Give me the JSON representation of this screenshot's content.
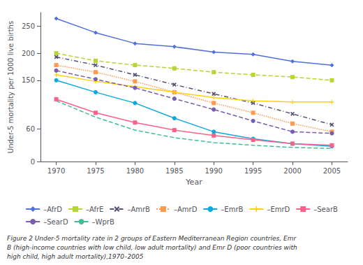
{
  "chart_data": {
    "type": "line",
    "x_label": "Year",
    "y_label": "Under-5 mortality per 1000 live births",
    "caption": "Figure 2 Under-5 mortality rate in 2 groups of Eastern Mediterranean Region countries, Emr\nB (high-income countries with low child, low adult mortality) and Emr D (poor countries with\nhigh child, high adult mortality),1970–2005",
    "x": [
      1970,
      1975,
      1980,
      1985,
      1990,
      1995,
      2000,
      2005
    ],
    "xlim": [
      1968,
      2007
    ],
    "xticks": [
      1970,
      1975,
      1980,
      1985,
      1990,
      1995,
      2000,
      2005
    ],
    "ylim": [
      0,
      275
    ],
    "yticks": [
      0,
      60,
      150,
      200,
      250
    ],
    "grid": false,
    "legend": "bottom",
    "series": [
      {
        "name": "–AfrD",
        "values": [
          264,
          238,
          218,
          212,
          202,
          198,
          185,
          178
        ],
        "marker": "diamond",
        "line_style": "solid"
      },
      {
        "name": "–AfrE",
        "values": [
          200,
          186,
          178,
          172,
          165,
          160,
          156,
          150
        ],
        "marker": "square",
        "line_style": "dashed"
      },
      {
        "name": "–AmrB",
        "values": [
          193,
          178,
          160,
          142,
          125,
          108,
          88,
          68
        ],
        "marker": "x",
        "line_style": "dashdot"
      },
      {
        "name": "–AmrD",
        "values": [
          178,
          165,
          148,
          128,
          108,
          90,
          70,
          55
        ],
        "marker": "square",
        "line_style": "dotted"
      },
      {
        "name": "–EmrB",
        "values": [
          150,
          128,
          108,
          80,
          55,
          42,
          33,
          28
        ],
        "marker": "circle",
        "line_style": "solid"
      },
      {
        "name": "–EmrD",
        "values": [
          160,
          148,
          138,
          128,
          118,
          112,
          110,
          110
        ],
        "marker": "plus",
        "line_style": "solid"
      },
      {
        "name": "–SearB",
        "values": [
          115,
          90,
          72,
          58,
          48,
          40,
          33,
          30
        ],
        "marker": "square",
        "line_style": "solid"
      },
      {
        "name": "–SearD",
        "values": [
          168,
          152,
          136,
          116,
          96,
          75,
          55,
          52
        ],
        "marker": "circle",
        "line_style": "dashed"
      },
      {
        "name": "–WprB",
        "values": [
          112,
          82,
          58,
          44,
          35,
          30,
          26,
          24
        ],
        "marker": "none",
        "line_style": "dashed"
      }
    ]
  }
}
